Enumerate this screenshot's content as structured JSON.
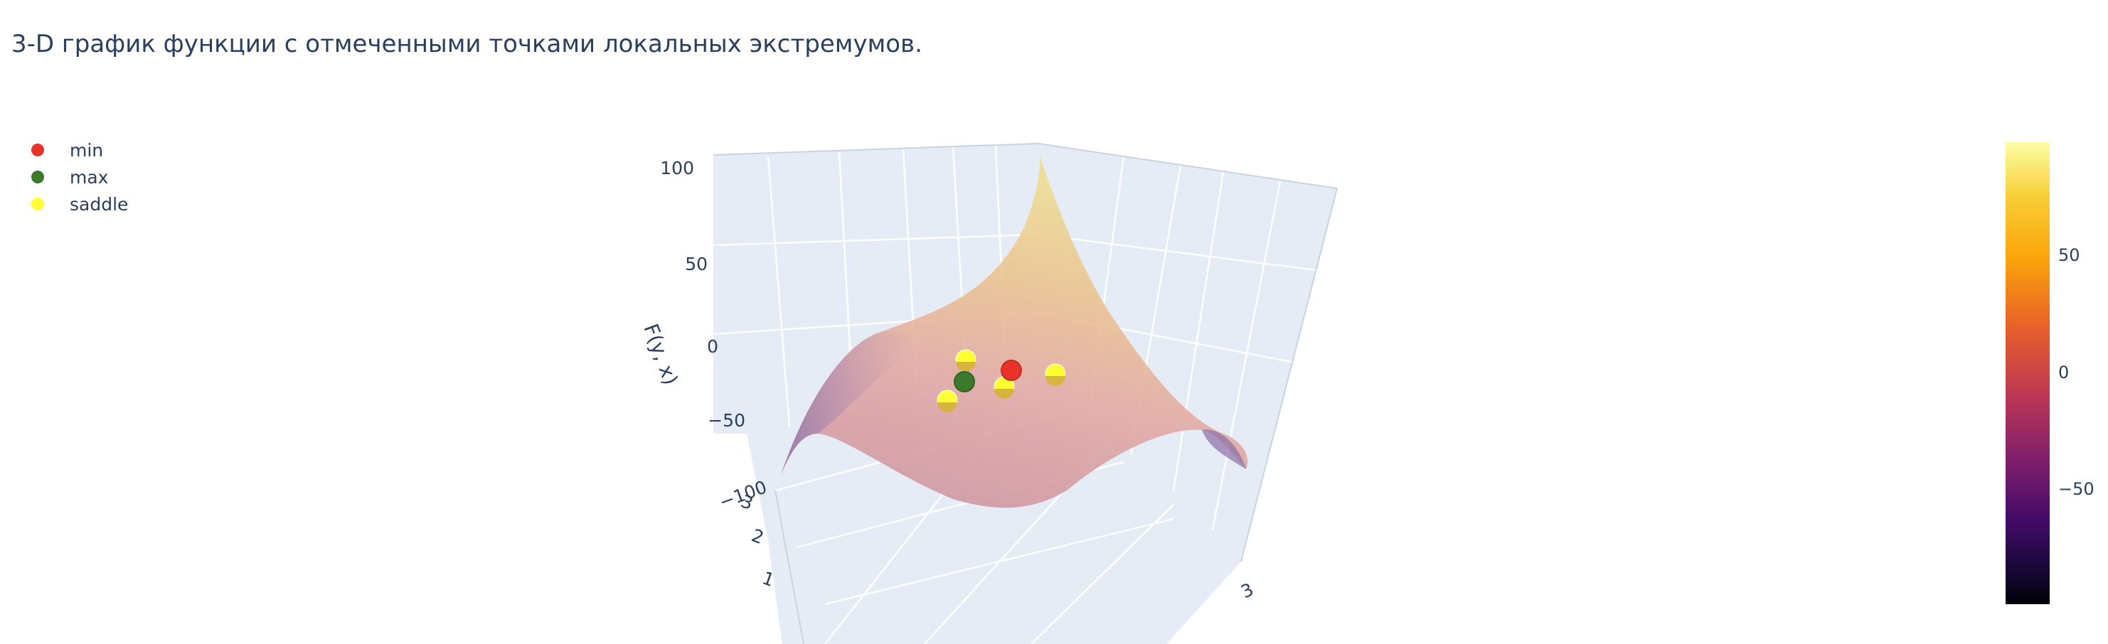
{
  "title": "3-D график функции с отмеченными точками локальных экстремумов.",
  "legend": [
    {
      "label": "min",
      "color": "#e8332a"
    },
    {
      "label": "max",
      "color": "#3b7a2b"
    },
    {
      "label": "saddle",
      "color": "#ffff33"
    }
  ],
  "colorscale": {
    "name": "Inferno",
    "ticks": [
      "50",
      "0",
      "−50"
    ],
    "range": [
      -100,
      100
    ]
  },
  "chart_data": {
    "type": "surface",
    "title": "3-D график функции с отмеченными точками локальных экстремумов.",
    "x_range": [
      -3,
      3
    ],
    "y_range": [
      -3,
      3
    ],
    "zlabel": "F(y, x)",
    "z_ticks": [
      "100",
      "50",
      "0",
      "−50",
      "−100"
    ],
    "y_ticks_visible": [
      "3",
      "2",
      "1"
    ],
    "x_ticks_visible": [
      "3"
    ],
    "zlim": [
      -100,
      100
    ],
    "series": [
      {
        "name": "min",
        "color": "#e8332a",
        "points": [
          {
            "x": 0.3,
            "y": 0.3,
            "z": -10
          }
        ]
      },
      {
        "name": "max",
        "color": "#3b7a2b",
        "points": [
          {
            "x": -0.3,
            "y": -0.3,
            "z": 5
          }
        ]
      },
      {
        "name": "saddle",
        "color": "#ffff33",
        "points": [
          {
            "x": 1.2,
            "y": -1.0,
            "z": -5
          },
          {
            "x": -1.0,
            "y": 1.2,
            "z": -5
          },
          {
            "x": 0.8,
            "y": 0.9,
            "z": -5
          },
          {
            "x": -1.2,
            "y": -1.0,
            "z": -5
          }
        ]
      }
    ]
  }
}
